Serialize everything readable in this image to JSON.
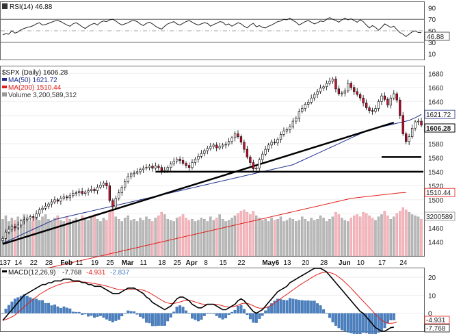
{
  "chart_data": [
    {
      "id": "rsi",
      "type": "line",
      "legend": "RSI(14) 46.88",
      "last_label": "46.88",
      "ylim": [
        0,
        100
      ],
      "yticks": [
        "90",
        "70",
        "50",
        "30",
        "10"
      ],
      "overbought": 70,
      "oversold": 30,
      "midline": 50,
      "values": [
        43,
        45,
        44,
        50,
        46,
        48,
        52,
        54,
        56,
        57,
        59,
        62,
        64,
        60,
        61,
        63,
        65,
        67,
        68,
        66,
        63,
        60,
        58,
        62,
        64,
        61,
        57,
        54,
        58,
        61,
        63,
        60,
        65,
        67,
        66,
        69,
        70,
        67,
        63,
        60,
        62,
        64,
        67,
        68,
        66,
        62,
        59,
        63,
        65,
        62,
        58,
        55,
        53,
        58,
        62,
        64,
        66,
        62,
        60,
        63,
        66,
        68,
        65,
        62,
        60,
        62,
        64,
        63,
        58,
        61,
        63,
        66,
        65,
        60,
        62,
        58,
        61,
        64,
        62,
        58,
        55,
        60,
        63,
        57,
        59,
        56,
        55,
        58,
        60,
        63,
        66,
        67,
        70,
        69,
        72,
        68,
        65,
        60,
        63,
        66,
        68,
        65,
        62,
        64,
        67,
        66,
        70,
        73,
        70,
        68,
        65,
        69,
        72,
        69,
        71,
        68,
        65,
        69,
        66,
        60,
        55,
        59,
        56,
        51,
        56,
        62,
        59,
        56,
        58,
        52,
        47,
        44,
        40,
        44,
        48,
        50,
        47,
        46.88
      ]
    },
    {
      "id": "price",
      "type": "candlestick",
      "legend_symbol": "$SPX (Daily) 1606.28",
      "legend_ma50": "MA(50) 1621.72",
      "legend_ma200": "MA(200) 1510.44",
      "legend_volume": "Volume 3,200,589,312",
      "ylim": [
        1420,
        1690
      ],
      "yticks": [
        "1680",
        "1660",
        "1640",
        "1620",
        "1600",
        "1580",
        "1560",
        "1540",
        "1520",
        "1500",
        "1480",
        "1460",
        "1440"
      ],
      "last_close_label": "1606.28",
      "ma50_label": "1621.72",
      "ma200_label": "1510.44",
      "volume_label": "3200589",
      "closes": [
        1445,
        1454,
        1458,
        1462,
        1460,
        1464,
        1470,
        1472,
        1474,
        1476,
        1475,
        1480,
        1486,
        1488,
        1491,
        1494,
        1497,
        1500,
        1498,
        1502,
        1504,
        1503,
        1506,
        1509,
        1510,
        1512,
        1509,
        1511,
        1513,
        1515,
        1513,
        1518,
        1521,
        1524,
        1520,
        1499,
        1490,
        1502,
        1510,
        1518,
        1526,
        1533,
        1537,
        1538,
        1540,
        1543,
        1545,
        1546,
        1548,
        1545,
        1548,
        1546,
        1541,
        1542,
        1546,
        1551,
        1555,
        1558,
        1556,
        1552,
        1549,
        1546,
        1553,
        1558,
        1562,
        1566,
        1570,
        1573,
        1576,
        1578,
        1574,
        1576,
        1578,
        1579,
        1583,
        1588,
        1594,
        1590,
        1582,
        1572,
        1561,
        1553,
        1544,
        1545,
        1557,
        1565,
        1572,
        1578,
        1582,
        1581,
        1586,
        1593,
        1598,
        1600,
        1604,
        1612,
        1616,
        1626,
        1630,
        1636,
        1639,
        1645,
        1650,
        1654,
        1659,
        1661,
        1666,
        1669,
        1672,
        1658,
        1651,
        1652,
        1655,
        1666,
        1660,
        1654,
        1650,
        1645,
        1638,
        1631,
        1627,
        1626,
        1630,
        1640,
        1648,
        1643,
        1635,
        1645,
        1651,
        1642,
        1620,
        1594,
        1583,
        1590,
        1602,
        1611,
        1612,
        1606.28
      ],
      "ma50": [
        1438,
        1440,
        1442,
        1444,
        1446,
        1448,
        1450,
        1452,
        1454,
        1456,
        1458,
        1460,
        1462,
        1464,
        1466,
        1468,
        1470,
        1472,
        1473,
        1474,
        1475,
        1476,
        1477,
        1478,
        1479,
        1480,
        1481,
        1482,
        1483,
        1484,
        1485,
        1486,
        1487,
        1488,
        1489,
        1490,
        1491,
        1492,
        1493,
        1494,
        1495,
        1496,
        1497,
        1498,
        1499,
        1500,
        1501,
        1502,
        1503,
        1504,
        1505,
        1506,
        1507,
        1508,
        1509,
        1510,
        1511,
        1512,
        1513,
        1514,
        1515,
        1516,
        1517,
        1518,
        1519,
        1520,
        1521,
        1522,
        1523,
        1524,
        1525,
        1526,
        1527,
        1528,
        1529,
        1530,
        1531,
        1532,
        1533,
        1534,
        1535,
        1536,
        1537,
        1538,
        1539,
        1540,
        1541,
        1542,
        1543,
        1544,
        1545,
        1546,
        1547,
        1548,
        1549,
        1550,
        1552,
        1554,
        1556,
        1558,
        1560,
        1562,
        1564,
        1566,
        1568,
        1570,
        1572,
        1574,
        1576,
        1578,
        1580,
        1582,
        1584,
        1586,
        1588,
        1590,
        1592,
        1594,
        1596,
        1598,
        1600,
        1601,
        1602,
        1603,
        1604,
        1605,
        1606,
        1607,
        1608,
        1609,
        1610,
        1611,
        1612,
        1613,
        1615,
        1617,
        1619,
        1621.72
      ],
      "ma200": [
        1388,
        1389,
        1390,
        1391,
        1392,
        1393,
        1394,
        1395,
        1396,
        1397,
        1398,
        1399,
        1400,
        1401,
        1402,
        1403,
        1404,
        1405,
        1406,
        1407,
        1408,
        1409,
        1410,
        1411,
        1412,
        1413,
        1414,
        1415,
        1416,
        1417,
        1418,
        1419,
        1420,
        1421,
        1422,
        1423,
        1424,
        1425,
        1426,
        1427,
        1428,
        1429,
        1430,
        1431,
        1432,
        1433,
        1434,
        1435,
        1436,
        1437,
        1438,
        1439,
        1440,
        1441,
        1442,
        1443,
        1444,
        1445,
        1446,
        1447,
        1448,
        1449,
        1450,
        1451,
        1452,
        1453,
        1454,
        1455,
        1456,
        1457,
        1458,
        1459,
        1460,
        1461,
        1462,
        1463,
        1464,
        1465,
        1466,
        1467,
        1468,
        1469,
        1470,
        1471,
        1472,
        1473,
        1474,
        1475,
        1476,
        1477,
        1478,
        1479,
        1480,
        1481,
        1482,
        1483,
        1484,
        1485,
        1486,
        1487,
        1488,
        1489,
        1490,
        1491,
        1492,
        1493,
        1494,
        1495,
        1496,
        1497,
        1498,
        1499,
        1500,
        1501,
        1502,
        1502.5,
        1503,
        1503.5,
        1504,
        1504.5,
        1505,
        1505.5,
        1506,
        1506.5,
        1507,
        1507.5,
        1508,
        1508.5,
        1509,
        1509.5,
        1510,
        1510.2,
        1510.44
      ],
      "volume": [
        3.2,
        3.5,
        3.0,
        3.3,
        3.1,
        3.4,
        2.9,
        3.6,
        3.2,
        3.0,
        3.3,
        3.5,
        3.1,
        3.4,
        3.6,
        3.2,
        3.0,
        3.3,
        3.5,
        3.1,
        3.0,
        3.4,
        3.2,
        3.1,
        3.3,
        3.0,
        3.5,
        3.2,
        3.1,
        3.4,
        3.6,
        3.2,
        3.0,
        3.3,
        3.1,
        3.9,
        4.1,
        3.4,
        3.2,
        3.0,
        3.3,
        3.5,
        3.1,
        3.2,
        3.0,
        3.3,
        3.1,
        3.4,
        3.2,
        3.0,
        3.3,
        3.5,
        3.8,
        3.6,
        3.2,
        3.1,
        3.0,
        3.3,
        3.4,
        3.6,
        3.3,
        3.1,
        3.2,
        3.0,
        3.1,
        3.3,
        3.2,
        3.0,
        3.4,
        3.1,
        3.3,
        3.6,
        3.2,
        3.0,
        3.1,
        3.3,
        3.5,
        3.7,
        3.9,
        4.0,
        3.8,
        3.6,
        3.9,
        3.5,
        3.3,
        3.1,
        3.2,
        3.0,
        3.3,
        3.1,
        3.2,
        3.4,
        3.0,
        3.1,
        3.3,
        3.2,
        3.0,
        3.1,
        3.4,
        3.2,
        3.0,
        3.3,
        3.1,
        3.2,
        3.5,
        3.3,
        3.0,
        3.2,
        3.4,
        3.8,
        3.6,
        3.3,
        3.1,
        3.0,
        3.3,
        3.5,
        3.6,
        3.4,
        3.8,
        3.7,
        3.5,
        3.3,
        3.1,
        3.4,
        3.6,
        3.9,
        3.5,
        3.2,
        3.4,
        3.7,
        3.9,
        4.2,
        4.0,
        3.8,
        3.6,
        3.5,
        3.4,
        3.2
      ],
      "support_lines": [
        1540,
        1561
      ],
      "trendline": {
        "from": [
          0,
          1437
        ],
        "to": [
          128,
          1610
        ]
      }
    },
    {
      "id": "macd",
      "type": "line",
      "legend_title": "MACD(12,26,9)",
      "legend_macd": "-7.768",
      "legend_signal": "-4.931",
      "legend_hist": "-2.837",
      "ylim": [
        -10,
        25
      ],
      "yticks": [
        "20",
        "10",
        "0"
      ],
      "signal_label": "-4.931",
      "macd_label": "-7.768",
      "macd": [
        -4,
        -2,
        0,
        2,
        4,
        6,
        8,
        10,
        11,
        12,
        13,
        14,
        15,
        16,
        16,
        17,
        17,
        18,
        18,
        18,
        19,
        19,
        19,
        18,
        18,
        18,
        17,
        17,
        16,
        16,
        15,
        15,
        15,
        14,
        13,
        12,
        11,
        11,
        11,
        12,
        13,
        14,
        14,
        14,
        13,
        12,
        11,
        9,
        8,
        6,
        5,
        4,
        3,
        2,
        3,
        4,
        6,
        8,
        9,
        9,
        8,
        7,
        5,
        4,
        3,
        3,
        4,
        5,
        5,
        5,
        4,
        3,
        2,
        2,
        3,
        4,
        5,
        7,
        8,
        7,
        5,
        3,
        1,
        0,
        1,
        2,
        4,
        6,
        8,
        10,
        12,
        13,
        14,
        15,
        17,
        18,
        19,
        20,
        21,
        22,
        23,
        24,
        25,
        25,
        25,
        24,
        23,
        21,
        19,
        17,
        15,
        13,
        11,
        9,
        7,
        5,
        3,
        1,
        0,
        -2,
        -4,
        -6,
        -8,
        -9,
        -10,
        -10,
        -9,
        -8,
        -7.768
      ],
      "signal": [
        -4,
        -3.5,
        -2.8,
        -2,
        -1,
        0.5,
        2,
        3.5,
        5,
        6.5,
        8,
        9,
        10.5,
        11.5,
        12.5,
        13.5,
        14.3,
        15,
        15.7,
        16.2,
        16.7,
        17.1,
        17.4,
        17.5,
        17.6,
        17.6,
        17.5,
        17.3,
        17.1,
        16.8,
        16.5,
        16.2,
        15.9,
        15.5,
        15.1,
        14.6,
        14.1,
        13.6,
        13.2,
        13,
        13,
        13.1,
        13.3,
        13.4,
        13.4,
        13.2,
        12.8,
        12.2,
        11.4,
        10.4,
        9.4,
        8.3,
        7.3,
        6.3,
        5.7,
        5.4,
        5.5,
        5.8,
        6.3,
        6.8,
        7.1,
        7.1,
        6.8,
        6.3,
        5.7,
        5.2,
        4.9,
        4.9,
        5,
        5,
        4.9,
        4.6,
        4.1,
        3.7,
        3.5,
        3.6,
        3.9,
        4.5,
        5.2,
        5.6,
        5.5,
        5,
        4.2,
        3.3,
        2.9,
        2.8,
        3.1,
        3.7,
        4.6,
        5.7,
        7,
        8.2,
        9.4,
        10.5,
        11.8,
        13,
        14.2,
        15.4,
        16.5,
        17.6,
        18.6,
        19.7,
        20.7,
        21.6,
        22.3,
        22.7,
        22.9,
        22.6,
        22.1,
        21.3,
        20.1,
        18.8,
        17.2,
        15.6,
        13.9,
        12.1,
        10.3,
        8.4,
        6.7,
        4.9,
        3.1,
        1.3,
        -0.6,
        -2.3,
        -3.8,
        -4.9,
        -5.5,
        -5.6,
        -5.4,
        -4.931
      ]
    }
  ],
  "x_axis": {
    "labels": [
      "137",
      "14",
      "22",
      "28",
      "Feb",
      "11",
      "19",
      "25",
      "Mar",
      "11",
      "18",
      "25",
      "Apr",
      "8",
      "15",
      "22",
      "May6",
      "13",
      "20",
      "28",
      "Jun",
      "10",
      "17",
      "24"
    ],
    "major": [
      "Feb",
      "Mar",
      "Apr",
      "May6",
      "Jun"
    ]
  },
  "colors": {
    "up": "#ffffff",
    "down": "#c8102e",
    "ma50": "#1f2f8c",
    "ma200": "#e0201a",
    "volume_up": "#b8b8b8",
    "volume_down": "#f4b7bd",
    "macd_line": "#000000",
    "signal_line": "#e0201a",
    "histogram": "#4a7fc0"
  }
}
